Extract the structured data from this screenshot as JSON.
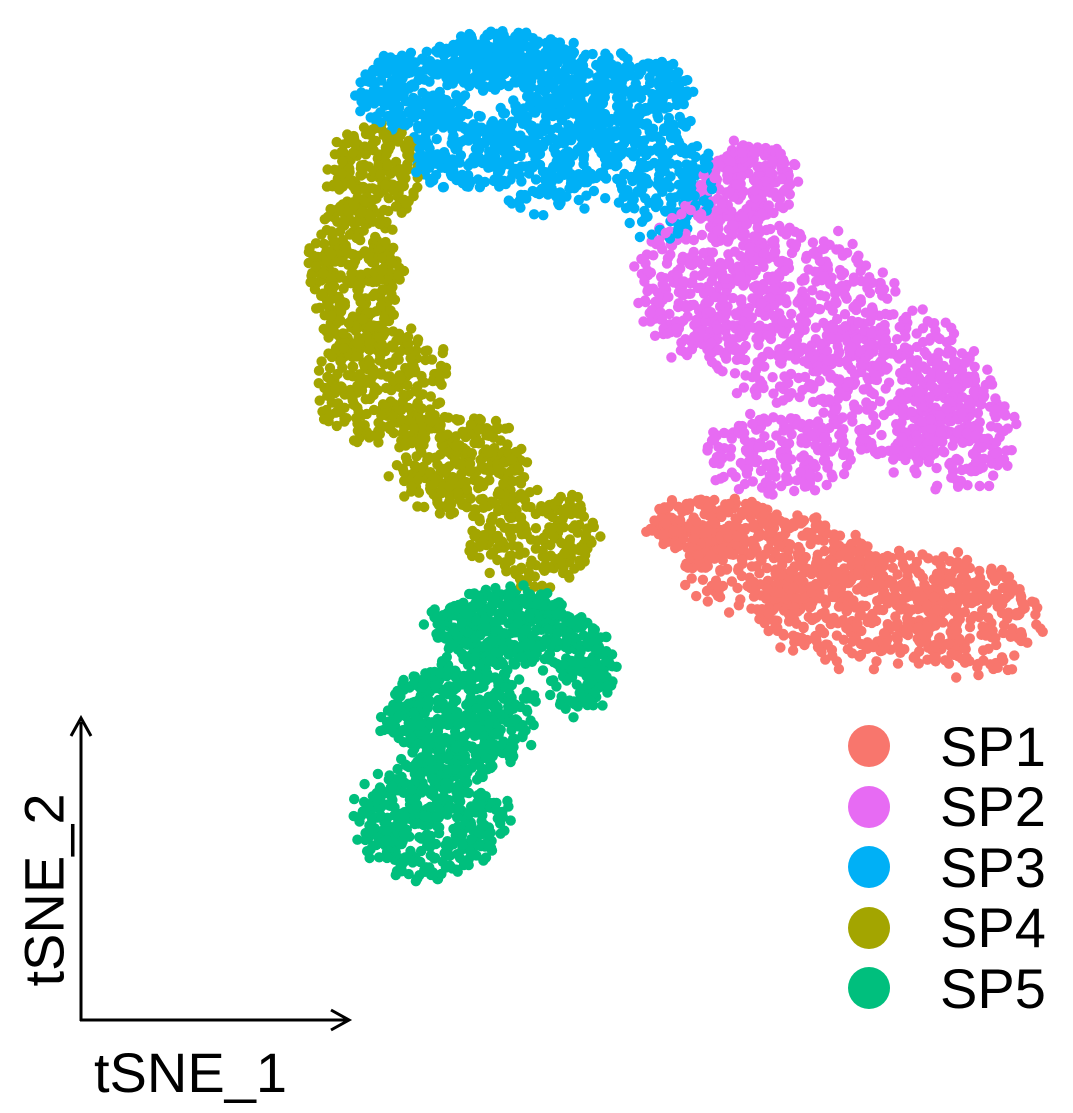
{
  "chart_data": {
    "type": "scatter",
    "title": "",
    "xlabel": "tSNE_1",
    "ylabel": "tSNE_2",
    "xlim": [
      0,
      100
    ],
    "ylim": [
      0,
      100
    ],
    "grid": false,
    "legend_position": "bottom-right",
    "series": [
      {
        "name": "SP1",
        "color": "#F8766D",
        "count": 1100,
        "regions": [
          [
            63,
            48,
            7,
            3,
            0.4
          ],
          [
            70,
            44,
            10,
            5,
            0.6
          ],
          [
            79,
            40,
            12,
            6,
            0.9
          ],
          [
            90,
            39,
            8,
            6,
            0.5
          ]
        ]
      },
      {
        "name": "SP2",
        "color": "#E76BF3",
        "count": 1700,
        "regions": [
          [
            67,
            82,
            5,
            4,
            0.5
          ],
          [
            63,
            72,
            8,
            8,
            0.8
          ],
          [
            72,
            69,
            11,
            9,
            1.0
          ],
          [
            82,
            62,
            9,
            8,
            0.8
          ],
          [
            89,
            58,
            6,
            7,
            0.5
          ],
          [
            70,
            55,
            8,
            4,
            0.4
          ]
        ]
      },
      {
        "name": "SP3",
        "color": "#00B0F6",
        "count": 1500,
        "regions": [
          [
            31,
            91,
            6,
            4,
            0.6
          ],
          [
            41,
            94,
            8,
            3,
            0.8
          ],
          [
            53,
            90,
            8,
            5,
            0.9
          ],
          [
            58,
            82,
            5,
            6,
            0.5
          ],
          [
            46,
            85,
            8,
            6,
            0.8
          ],
          [
            36,
            85,
            5,
            4,
            0.5
          ]
        ]
      },
      {
        "name": "SP4",
        "color": "#A3A500",
        "count": 1300,
        "regions": [
          [
            27,
            83,
            5,
            5,
            0.5
          ],
          [
            25,
            72,
            5,
            8,
            0.9
          ],
          [
            28,
            62,
            7,
            6,
            0.9
          ],
          [
            36,
            54,
            7,
            5,
            0.8
          ],
          [
            44,
            47,
            7,
            5,
            0.6
          ]
        ]
      },
      {
        "name": "SP5",
        "color": "#00BF7D",
        "count": 1400,
        "regions": [
          [
            41,
            38,
            8,
            4,
            0.7
          ],
          [
            36,
            29,
            8,
            6,
            0.9
          ],
          [
            33,
            19,
            8,
            6,
            0.8
          ],
          [
            49,
            34,
            4,
            5,
            0.3
          ]
        ]
      }
    ]
  }
}
